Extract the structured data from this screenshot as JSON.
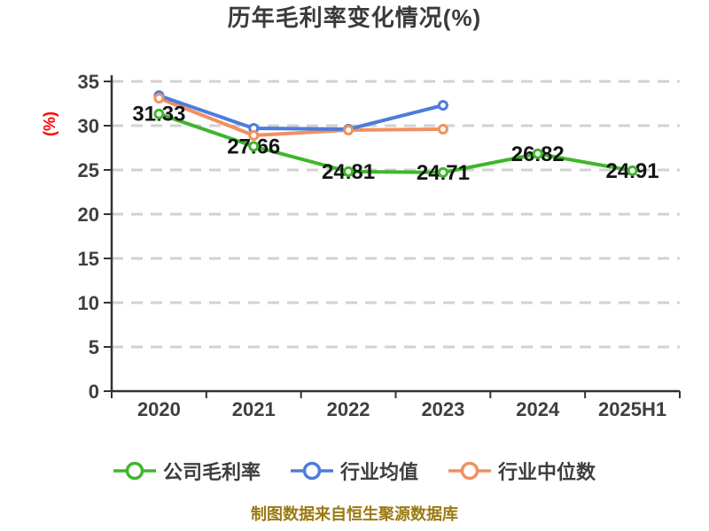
{
  "title": "历年毛利率变化情况(%)",
  "chart_data": {
    "type": "line",
    "title": "历年毛利率变化情况(%)",
    "ylabel": "(%)",
    "xlabel": "",
    "categories": [
      "2020",
      "2021",
      "2022",
      "2023",
      "2024",
      "2025H1"
    ],
    "ylim": [
      0,
      35
    ],
    "ytick_step": 5,
    "yticks": [
      0,
      5,
      10,
      15,
      20,
      25,
      30,
      35
    ],
    "grid": "horizontal-dashed",
    "legend_position": "bottom",
    "series": [
      {
        "key": "company-gross-margin",
        "name": "公司毛利率",
        "color": "#3fb62c",
        "values": [
          31.33,
          27.66,
          24.81,
          24.71,
          26.82,
          24.91
        ],
        "show_point_labels": true,
        "point_labels": [
          "31.33",
          "27.66",
          "24.81",
          "24.71",
          "26.82",
          "24.91"
        ]
      },
      {
        "key": "industry-mean",
        "name": "行业均值",
        "color": "#4d7cdb",
        "values": [
          33.4,
          29.7,
          29.6,
          32.3,
          null,
          null
        ],
        "show_point_labels": false,
        "point_labels": null
      },
      {
        "key": "industry-median",
        "name": "行业中位数",
        "color": "#f1905f",
        "values": [
          33.1,
          28.9,
          29.5,
          29.6,
          null,
          null
        ],
        "show_point_labels": false,
        "point_labels": null
      }
    ],
    "source_note": "制图数据来自恒生聚源数据库"
  },
  "styles": {
    "title_color": "#3a3a3a",
    "axis_color": "#333333",
    "tick_label_color": "#3f3f3f",
    "grid_color": "#d2d2d2",
    "ylabel_color": "#ff0000",
    "data_label_color": "#141414",
    "legend_text_color": "#3e3e3e",
    "source_color": "#9c7a12",
    "marker_fill": "#ffffff",
    "background": "#ffffff"
  }
}
